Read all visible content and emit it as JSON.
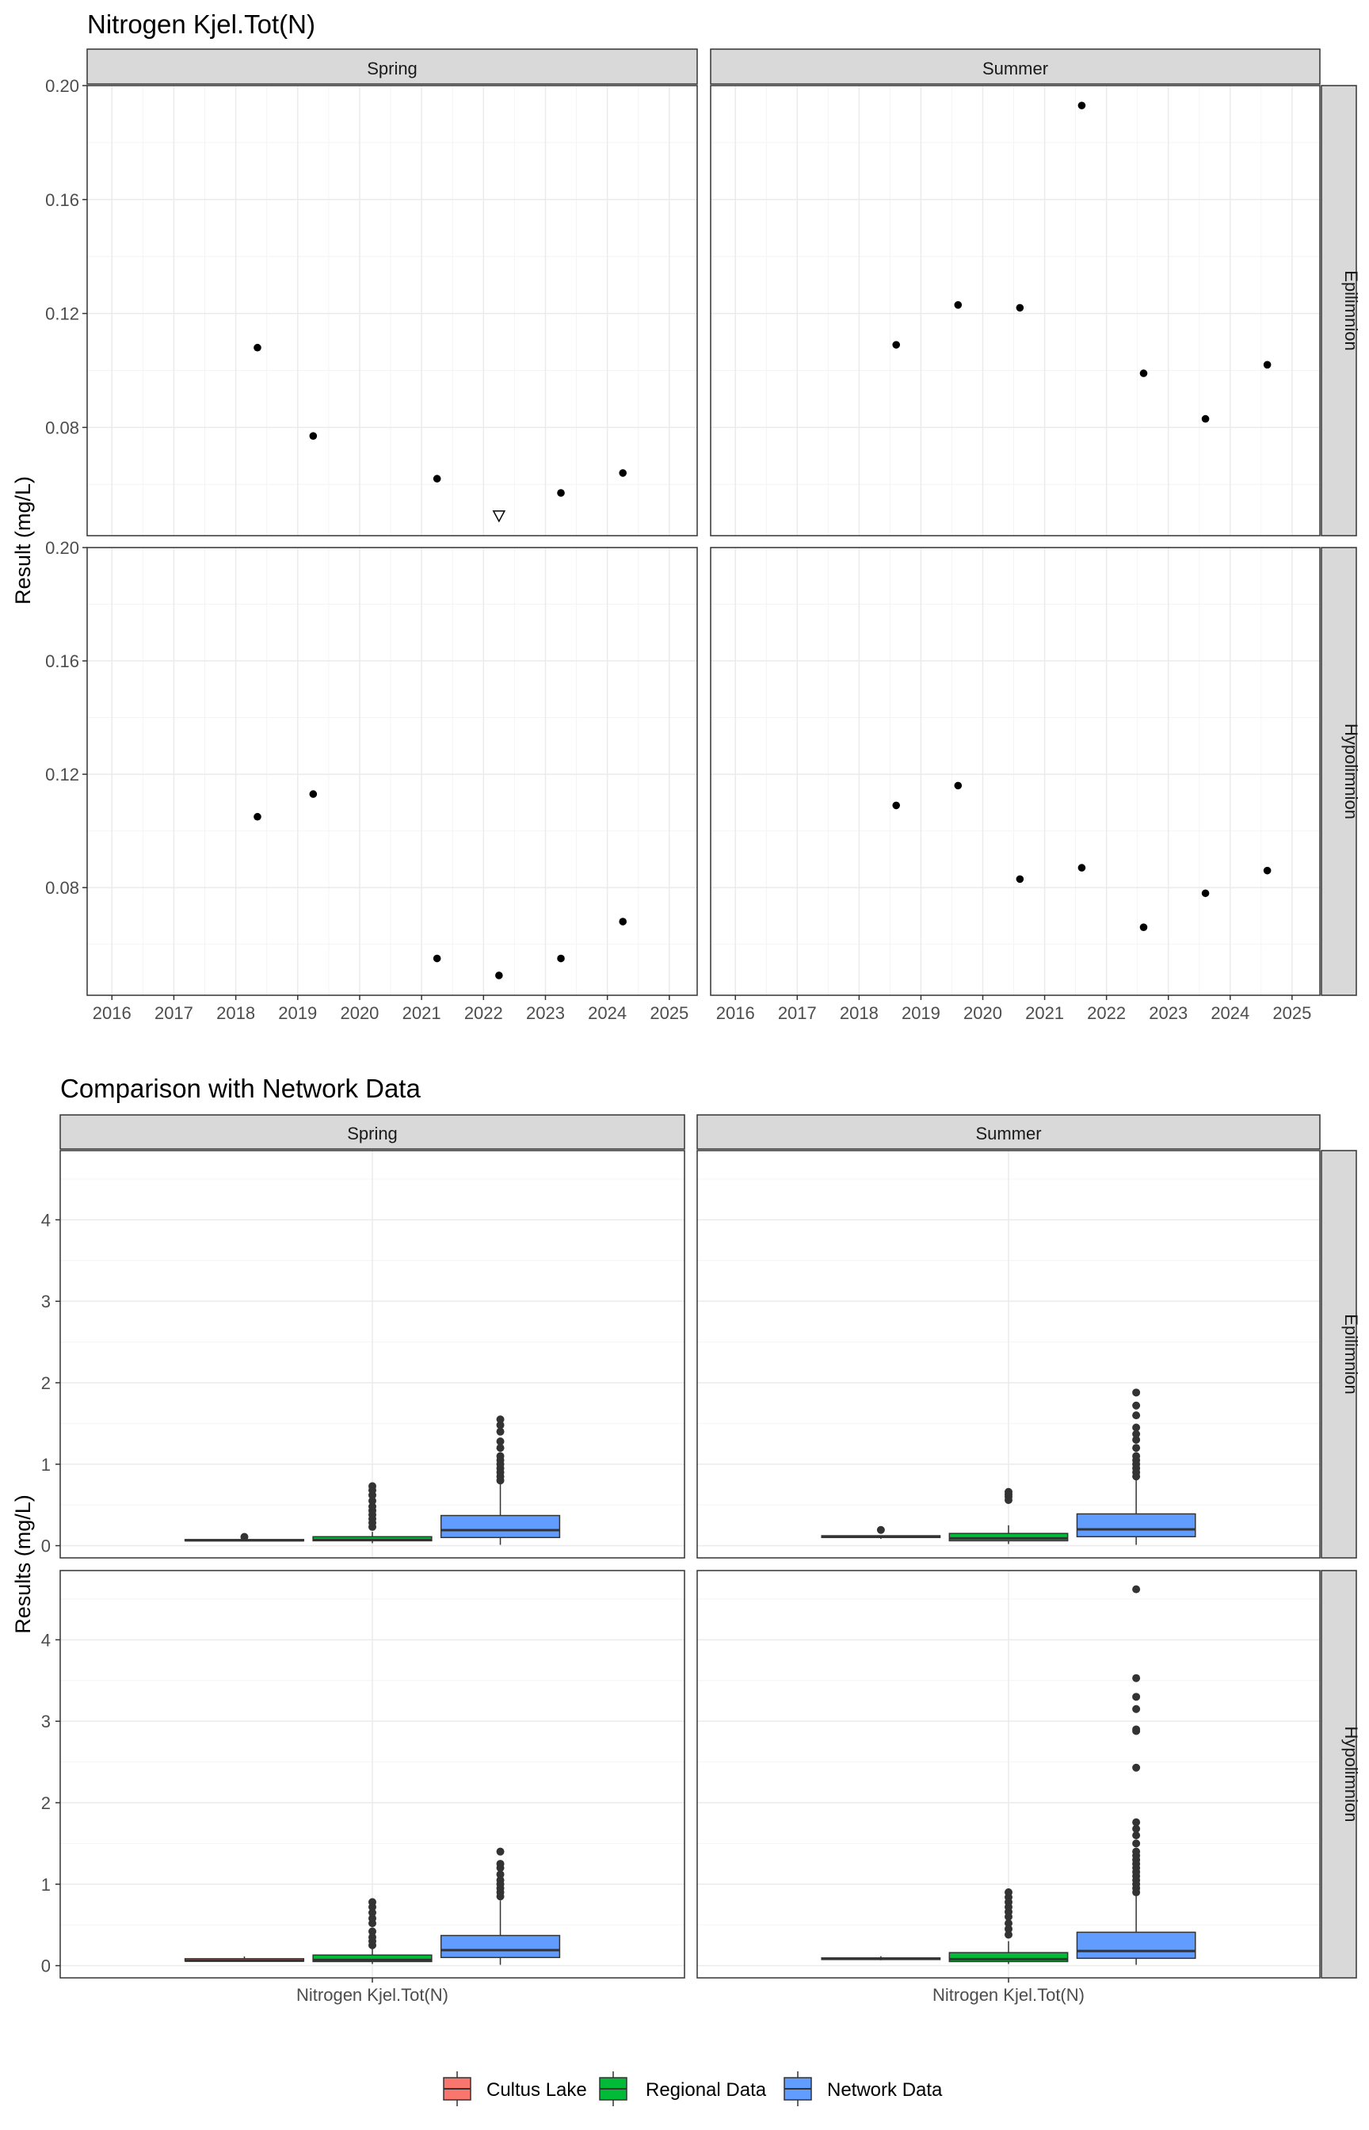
{
  "chart_data": [
    {
      "type": "scatter",
      "title": "Nitrogen Kjel.Tot(N)",
      "ylabel": "Result (mg/L)",
      "xlabel": "",
      "x_ticks": [
        "2016",
        "2017",
        "2018",
        "2019",
        "2020",
        "2021",
        "2022",
        "2023",
        "2024",
        "2025"
      ],
      "xlim": [
        2015.6,
        2025.45
      ],
      "y_ticks": [
        "0.08",
        "0.12",
        "0.16",
        "0.20"
      ],
      "y_tick_values": [
        0.08,
        0.12,
        0.16,
        0.2
      ],
      "ylim_by_row": [
        [
          0.042,
          0.2
        ],
        [
          0.042,
          0.2
        ]
      ],
      "grid": true,
      "col_strips": [
        "Spring",
        "Summer"
      ],
      "row_strips": [
        "Epilimnion",
        "Hypolimnion"
      ],
      "panels": [
        {
          "row": 0,
          "col": 0,
          "points": [
            {
              "x": 2018.35,
              "y": 0.108
            },
            {
              "x": 2019.25,
              "y": 0.077
            },
            {
              "x": 2021.25,
              "y": 0.062
            },
            {
              "x": 2023.25,
              "y": 0.057
            },
            {
              "x": 2024.25,
              "y": 0.064
            },
            {
              "x": 2022.25,
              "y": 0.049,
              "censored": true
            }
          ]
        },
        {
          "row": 0,
          "col": 1,
          "points": [
            {
              "x": 2018.6,
              "y": 0.109
            },
            {
              "x": 2019.6,
              "y": 0.123
            },
            {
              "x": 2020.6,
              "y": 0.122
            },
            {
              "x": 2021.6,
              "y": 0.193
            },
            {
              "x": 2022.6,
              "y": 0.099
            },
            {
              "x": 2023.6,
              "y": 0.083
            },
            {
              "x": 2024.6,
              "y": 0.102
            }
          ]
        },
        {
          "row": 1,
          "col": 0,
          "points": [
            {
              "x": 2018.35,
              "y": 0.105
            },
            {
              "x": 2019.25,
              "y": 0.113
            },
            {
              "x": 2021.25,
              "y": 0.055
            },
            {
              "x": 2022.25,
              "y": 0.049
            },
            {
              "x": 2023.25,
              "y": 0.055
            },
            {
              "x": 2024.25,
              "y": 0.068
            }
          ]
        },
        {
          "row": 1,
          "col": 1,
          "points": [
            {
              "x": 2018.6,
              "y": 0.109
            },
            {
              "x": 2019.6,
              "y": 0.116
            },
            {
              "x": 2020.6,
              "y": 0.083
            },
            {
              "x": 2021.6,
              "y": 0.087
            },
            {
              "x": 2022.6,
              "y": 0.066
            },
            {
              "x": 2023.6,
              "y": 0.078
            },
            {
              "x": 2024.6,
              "y": 0.086
            }
          ]
        }
      ]
    },
    {
      "type": "box",
      "title": "Comparison with Network Data",
      "ylabel": "Results (mg/L)",
      "x_ticks": [
        "Nitrogen Kjel.Tot(N)"
      ],
      "y_ticks": [
        "0",
        "1",
        "2",
        "3",
        "4"
      ],
      "y_tick_values": [
        0,
        1,
        2,
        3,
        4
      ],
      "ylim_by_row": [
        [
          -0.15,
          4.85
        ],
        [
          -0.15,
          4.85
        ]
      ],
      "grid": true,
      "col_strips": [
        "Spring",
        "Summer"
      ],
      "row_strips": [
        "Epilimnion",
        "Hypolimnion"
      ],
      "legend": {
        "position": "bottom",
        "entries": [
          {
            "name": "Cultus Lake",
            "color": "#F8766D"
          },
          {
            "name": "Regional Data",
            "color": "#00BA38"
          },
          {
            "name": "Network Data",
            "color": "#619CFF"
          }
        ]
      },
      "panels": [
        {
          "row": 0,
          "col": 0,
          "boxes": [
            {
              "series": "Cultus Lake",
              "q1": 0.06,
              "median": 0.065,
              "q3": 0.075,
              "whisker_low": 0.055,
              "whisker_high": 0.08,
              "outliers": [
                0.108
              ]
            },
            {
              "series": "Regional Data",
              "q1": 0.06,
              "median": 0.07,
              "q3": 0.11,
              "whisker_low": 0.03,
              "whisker_high": 0.17,
              "outliers": [
                0.23,
                0.28,
                0.33,
                0.38,
                0.43,
                0.48,
                0.55,
                0.62,
                0.68,
                0.73
              ]
            },
            {
              "series": "Network Data",
              "q1": 0.1,
              "median": 0.19,
              "q3": 0.37,
              "whisker_low": 0.01,
              "whisker_high": 0.76,
              "outliers": [
                0.8,
                0.85,
                0.9,
                0.95,
                1.0,
                1.05,
                1.1,
                1.2,
                1.28,
                1.4,
                1.48,
                1.55
              ]
            }
          ]
        },
        {
          "row": 0,
          "col": 1,
          "boxes": [
            {
              "series": "Cultus Lake",
              "q1": 0.1,
              "median": 0.108,
              "q3": 0.122,
              "whisker_low": 0.083,
              "whisker_high": 0.125,
              "outliers": [
                0.193
              ]
            },
            {
              "series": "Regional Data",
              "q1": 0.06,
              "median": 0.09,
              "q3": 0.15,
              "whisker_low": 0.02,
              "whisker_high": 0.25,
              "outliers": [
                0.56,
                0.6,
                0.63,
                0.66
              ]
            },
            {
              "series": "Network Data",
              "q1": 0.11,
              "median": 0.2,
              "q3": 0.39,
              "whisker_low": 0.01,
              "whisker_high": 0.82,
              "outliers": [
                0.85,
                0.9,
                0.95,
                1.0,
                1.05,
                1.1,
                1.2,
                1.3,
                1.37,
                1.45,
                1.6,
                1.72,
                1.88
              ]
            }
          ]
        },
        {
          "row": 1,
          "col": 0,
          "boxes": [
            {
              "series": "Cultus Lake",
              "q1": 0.055,
              "median": 0.06,
              "q3": 0.085,
              "whisker_low": 0.049,
              "whisker_high": 0.113,
              "outliers": []
            },
            {
              "series": "Regional Data",
              "q1": 0.05,
              "median": 0.07,
              "q3": 0.13,
              "whisker_low": 0.02,
              "whisker_high": 0.21,
              "outliers": [
                0.25,
                0.3,
                0.35,
                0.42,
                0.52,
                0.58,
                0.65,
                0.72,
                0.78
              ]
            },
            {
              "series": "Network Data",
              "q1": 0.1,
              "median": 0.19,
              "q3": 0.37,
              "whisker_low": 0.01,
              "whisker_high": 0.8,
              "outliers": [
                0.85,
                0.9,
                0.95,
                1.0,
                1.05,
                1.12,
                1.2,
                1.25,
                1.4
              ]
            }
          ]
        },
        {
          "row": 1,
          "col": 1,
          "boxes": [
            {
              "series": "Cultus Lake",
              "q1": 0.075,
              "median": 0.084,
              "q3": 0.095,
              "whisker_low": 0.066,
              "whisker_high": 0.116,
              "outliers": []
            },
            {
              "series": "Regional Data",
              "q1": 0.05,
              "median": 0.08,
              "q3": 0.16,
              "whisker_low": 0.02,
              "whisker_high": 0.3,
              "outliers": [
                0.38,
                0.45,
                0.52,
                0.6,
                0.66,
                0.72,
                0.78,
                0.84,
                0.9
              ]
            },
            {
              "series": "Network Data",
              "q1": 0.09,
              "median": 0.18,
              "q3": 0.41,
              "whisker_low": 0.01,
              "whisker_high": 0.87,
              "outliers": [
                0.9,
                0.95,
                1.0,
                1.05,
                1.1,
                1.15,
                1.2,
                1.25,
                1.3,
                1.35,
                1.4,
                1.5,
                1.6,
                1.68,
                1.76,
                2.43,
                2.88,
                2.9,
                3.15,
                3.3,
                3.53,
                4.62
              ]
            }
          ]
        }
      ]
    }
  ],
  "colors": {
    "panel_border": "#333333",
    "strip_fill": "#D9D9D9",
    "grid_major": "#EBEBEB",
    "grid_minor": "#F4F4F4",
    "point": "#000000",
    "outlier": "#333333"
  }
}
